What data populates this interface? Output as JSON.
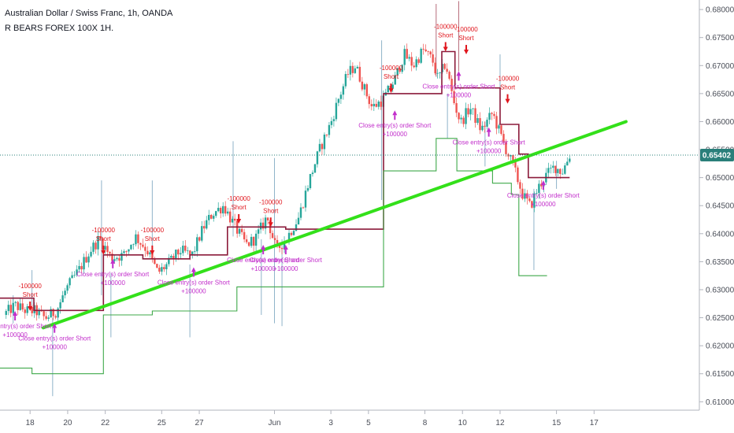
{
  "header": {
    "title": "Australian Dollar / Swiss Franc, 1h, OANDA",
    "study": "R BEARS FOREX 100X 1H."
  },
  "colors": {
    "up": "#26a69a",
    "down": "#ef5350",
    "trendline": "#33e01a",
    "upper_step": "#8b1a3a",
    "lower_step": "#3fa94a",
    "signal_short": "#e0161d",
    "signal_close": "#c22ecb",
    "price_badge": "#2a7f7a"
  },
  "chart_data": {
    "type": "line",
    "title": "Australian Dollar / Swiss Franc, 1h, OANDA",
    "xlabel": "",
    "ylabel": "",
    "x_tick_labels": [
      "18",
      "20",
      "22",
      "25",
      "27",
      "Jun",
      "3",
      "5",
      "8",
      "10",
      "12",
      "15",
      "17"
    ],
    "x_tick_positions": [
      1.6,
      3.6,
      5.6,
      8.6,
      10.6,
      14.6,
      17.6,
      19.6,
      22.6,
      24.6,
      26.6,
      29.6,
      31.6
    ],
    "y_tick_labels": [
      "0.61000",
      "0.61500",
      "0.62000",
      "0.62500",
      "0.63000",
      "0.63500",
      "0.64000",
      "0.64500",
      "0.65000",
      "0.65500",
      "0.66000",
      "0.66500",
      "0.67000",
      "0.67500",
      "0.68000"
    ],
    "ylim": [
      0.6085,
      0.6817
    ],
    "xlim": [
      0,
      37.2
    ],
    "current_price": "0.65402",
    "current_price_value": 0.65402,
    "grid": false,
    "price_path": [
      [
        0.2,
        0.6255
      ],
      [
        0.8,
        0.6272
      ],
      [
        1.4,
        0.6262
      ],
      [
        1.9,
        0.6262
      ],
      [
        2.4,
        0.6249
      ],
      [
        3.0,
        0.6262
      ],
      [
        3.5,
        0.63
      ],
      [
        4.2,
        0.6335
      ],
      [
        4.8,
        0.637
      ],
      [
        5.3,
        0.6392
      ],
      [
        5.9,
        0.6357
      ],
      [
        6.6,
        0.6362
      ],
      [
        7.2,
        0.6395
      ],
      [
        7.8,
        0.6372
      ],
      [
        8.4,
        0.633
      ],
      [
        9.0,
        0.6348
      ],
      [
        9.6,
        0.637
      ],
      [
        10.2,
        0.636
      ],
      [
        10.8,
        0.641
      ],
      [
        11.3,
        0.6436
      ],
      [
        11.9,
        0.645
      ],
      [
        12.5,
        0.6412
      ],
      [
        13.1,
        0.638
      ],
      [
        13.6,
        0.6392
      ],
      [
        14.2,
        0.643
      ],
      [
        14.7,
        0.637
      ],
      [
        15.3,
        0.6395
      ],
      [
        15.9,
        0.643
      ],
      [
        16.4,
        0.649
      ],
      [
        17.0,
        0.655
      ],
      [
        17.6,
        0.6598
      ],
      [
        18.0,
        0.664
      ],
      [
        18.5,
        0.6685
      ],
      [
        18.9,
        0.67
      ],
      [
        19.3,
        0.6665
      ],
      [
        19.8,
        0.6625
      ],
      [
        20.4,
        0.664
      ],
      [
        21.0,
        0.6675
      ],
      [
        21.5,
        0.672
      ],
      [
        22.0,
        0.67
      ],
      [
        22.5,
        0.6728
      ],
      [
        23.0,
        0.671
      ],
      [
        23.3,
        0.6675
      ],
      [
        23.7,
        0.6705
      ],
      [
        24.1,
        0.664
      ],
      [
        24.5,
        0.6598
      ],
      [
        25.0,
        0.6625
      ],
      [
        25.6,
        0.6585
      ],
      [
        26.2,
        0.6615
      ],
      [
        26.8,
        0.656
      ],
      [
        27.3,
        0.652
      ],
      [
        27.8,
        0.647
      ],
      [
        28.2,
        0.6448
      ],
      [
        28.6,
        0.648
      ],
      [
        29.0,
        0.6502
      ],
      [
        29.5,
        0.652
      ],
      [
        29.9,
        0.651
      ],
      [
        30.3,
        0.654
      ]
    ],
    "series": [
      {
        "kind": "step",
        "role": "upper",
        "points": [
          [
            0.0,
            0.6285
          ],
          [
            1.8,
            0.6285
          ],
          [
            1.8,
            0.6263
          ],
          [
            5.5,
            0.6263
          ],
          [
            5.5,
            0.6362
          ],
          [
            7.6,
            0.6362
          ],
          [
            7.6,
            0.6355
          ],
          [
            10.1,
            0.6355
          ],
          [
            10.1,
            0.6362
          ],
          [
            12.1,
            0.6362
          ],
          [
            12.1,
            0.6412
          ],
          [
            15.2,
            0.6412
          ],
          [
            15.2,
            0.6408
          ],
          [
            20.4,
            0.6408
          ],
          [
            20.4,
            0.665
          ],
          [
            23.5,
            0.665
          ],
          [
            23.5,
            0.6725
          ],
          [
            24.2,
            0.6725
          ],
          [
            24.2,
            0.666
          ],
          [
            26.6,
            0.666
          ],
          [
            26.6,
            0.6595
          ],
          [
            27.6,
            0.6595
          ],
          [
            27.6,
            0.6542
          ],
          [
            28.1,
            0.6542
          ],
          [
            28.1,
            0.65
          ],
          [
            30.3,
            0.65
          ]
        ]
      },
      {
        "kind": "step",
        "role": "lower",
        "points": [
          [
            0.0,
            0.616
          ],
          [
            1.7,
            0.616
          ],
          [
            1.7,
            0.615
          ],
          [
            5.5,
            0.615
          ],
          [
            5.5,
            0.6255
          ],
          [
            8.1,
            0.6255
          ],
          [
            8.1,
            0.6262
          ],
          [
            12.6,
            0.6262
          ],
          [
            12.6,
            0.6305
          ],
          [
            20.4,
            0.6305
          ],
          [
            20.4,
            0.6512
          ],
          [
            23.2,
            0.6512
          ],
          [
            23.2,
            0.657
          ],
          [
            24.3,
            0.657
          ],
          [
            24.3,
            0.6512
          ],
          [
            26.2,
            0.6512
          ],
          [
            26.2,
            0.649
          ],
          [
            27.2,
            0.649
          ],
          [
            27.2,
            0.647
          ],
          [
            27.6,
            0.647
          ],
          [
            27.6,
            0.6325
          ],
          [
            29.1,
            0.6325
          ]
        ]
      },
      {
        "kind": "trendline",
        "points": [
          [
            2.3,
            0.6232
          ],
          [
            33.3,
            0.66
          ]
        ]
      }
    ],
    "wicks": [
      [
        0.7,
        0.624,
        0.629
      ],
      [
        1.7,
        0.6265,
        0.6335
      ],
      [
        2.8,
        0.611,
        0.625
      ],
      [
        5.4,
        0.629,
        0.6495
      ],
      [
        5.9,
        0.6215,
        0.633
      ],
      [
        8.1,
        0.6365,
        0.6495
      ],
      [
        10.1,
        0.6215,
        0.6345
      ],
      [
        12.4,
        0.6395,
        0.6565
      ],
      [
        13.9,
        0.6255,
        0.639
      ],
      [
        14.6,
        0.624,
        0.6535
      ],
      [
        15.0,
        0.6235,
        0.639
      ],
      [
        20.3,
        0.646,
        0.6745
      ],
      [
        23.2,
        0.681,
        0.668
      ],
      [
        23.8,
        0.657,
        0.665
      ],
      [
        24.4,
        0.6815,
        0.669
      ],
      [
        25.8,
        0.652,
        0.66
      ],
      [
        26.6,
        0.6635,
        0.672
      ],
      [
        28.4,
        0.6335,
        0.648
      ],
      [
        29.6,
        0.648,
        0.653
      ]
    ],
    "signals": [
      {
        "x": 1.6,
        "y": 0.6262,
        "type": "short",
        "size": "-100000",
        "label": "Short",
        "anchor": "above"
      },
      {
        "x": 5.5,
        "y": 0.6362,
        "type": "short",
        "size": "-100000",
        "label": "Short",
        "anchor": "above"
      },
      {
        "x": 8.1,
        "y": 0.6362,
        "type": "short",
        "size": "-100000",
        "label": "Short",
        "anchor": "above"
      },
      {
        "x": 12.7,
        "y": 0.6418,
        "type": "short",
        "size": "-100000",
        "label": "Short",
        "anchor": "above"
      },
      {
        "x": 14.4,
        "y": 0.6412,
        "type": "short",
        "size": "-100000",
        "label": "Short",
        "anchor": "above"
      },
      {
        "x": 20.8,
        "y": 0.6651,
        "type": "short",
        "size": "-100000",
        "label": "Short",
        "anchor": "above"
      },
      {
        "x": 23.7,
        "y": 0.6725,
        "type": "short",
        "size": "-100000",
        "label": "Short",
        "anchor": "above"
      },
      {
        "x": 24.8,
        "y": 0.672,
        "type": "short",
        "size": "-100000",
        "label": "Short",
        "anchor": "above"
      },
      {
        "x": 27.0,
        "y": 0.6632,
        "type": "short",
        "size": "-100000",
        "label": "Short",
        "anchor": "above"
      },
      {
        "x": 0.8,
        "y": 0.6262,
        "type": "close",
        "size": "+100000",
        "label": "Close entry(s) order Short",
        "anchor": "below"
      },
      {
        "x": 2.9,
        "y": 0.624,
        "type": "close",
        "size": "+100000",
        "label": "Close entry(s) order Short",
        "anchor": "below"
      },
      {
        "x": 6.0,
        "y": 0.6355,
        "type": "close",
        "size": "+100000",
        "label": "Close entry(s) order Short",
        "anchor": "below"
      },
      {
        "x": 10.3,
        "y": 0.634,
        "type": "close",
        "size": "+100000",
        "label": "Close entry(s) order Short",
        "anchor": "below"
      },
      {
        "x": 14.0,
        "y": 0.638,
        "type": "close",
        "size": "+100000",
        "label": "Close entry(s) order Short",
        "anchor": "below"
      },
      {
        "x": 15.2,
        "y": 0.638,
        "type": "close",
        "size": "+100000",
        "label": "Close entry(s) order Short",
        "anchor": "below"
      },
      {
        "x": 21.0,
        "y": 0.662,
        "type": "close",
        "size": "+100000",
        "label": "Close entry(s) order Short",
        "anchor": "below"
      },
      {
        "x": 24.4,
        "y": 0.669,
        "type": "close",
        "size": "+100000",
        "label": "Close entry(s) order Short",
        "anchor": "below"
      },
      {
        "x": 26.0,
        "y": 0.659,
        "type": "close",
        "size": "+100000",
        "label": "Close entry(s) order Short",
        "anchor": "below"
      },
      {
        "x": 28.9,
        "y": 0.6495,
        "type": "close",
        "size": "+100000",
        "label": "Close entry(s) order Short",
        "anchor": "below"
      }
    ]
  }
}
